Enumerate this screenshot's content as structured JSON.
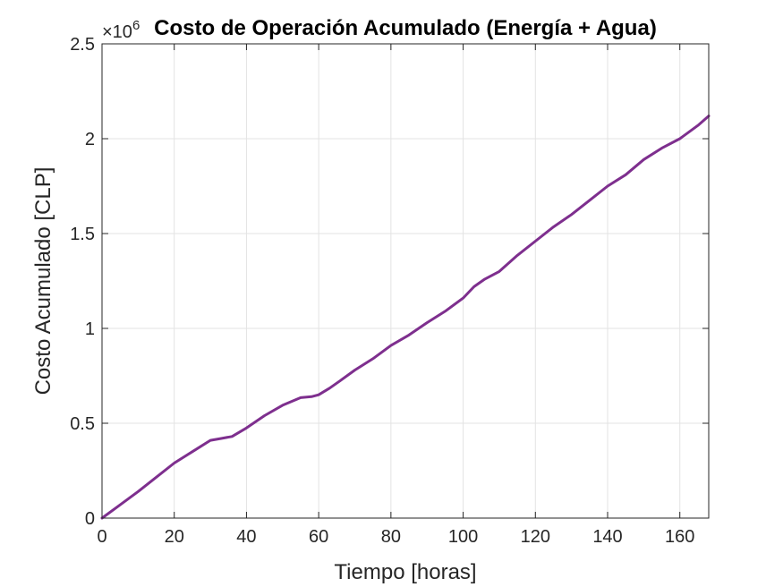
{
  "chart_data": {
    "type": "line",
    "title": "Costo de Operación Acumulado (Energía + Agua)",
    "xlabel": "Tiempo [horas]",
    "ylabel": "Costo Acumulado [CLP]",
    "y_multiplier": {
      "base": "×10",
      "exponent": "6"
    },
    "xlim": [
      0,
      168
    ],
    "ylim": [
      0,
      2500000
    ],
    "x_ticks": [
      0,
      20,
      40,
      60,
      80,
      100,
      120,
      140,
      160
    ],
    "x_tick_labels": [
      "0",
      "20",
      "40",
      "60",
      "80",
      "100",
      "120",
      "140",
      "160"
    ],
    "y_ticks": [
      0,
      500000,
      1000000,
      1500000,
      2000000,
      2500000
    ],
    "y_tick_labels": [
      "0",
      "0.5",
      "1",
      "1.5",
      "2",
      "2.5"
    ],
    "grid": true,
    "series": [
      {
        "color": "#7e2f8e",
        "x": [
          0,
          5,
          10,
          15,
          20,
          25,
          30,
          33,
          36,
          40,
          45,
          50,
          55,
          58,
          60,
          63,
          66,
          70,
          75,
          80,
          85,
          90,
          95,
          100,
          103,
          106,
          110,
          115,
          120,
          125,
          130,
          135,
          140,
          145,
          150,
          155,
          160,
          165,
          168
        ],
        "y": [
          0,
          70000,
          140000,
          215000,
          290000,
          350000,
          410000,
          420000,
          430000,
          475000,
          540000,
          595000,
          635000,
          640000,
          650000,
          685000,
          725000,
          780000,
          840000,
          910000,
          965000,
          1030000,
          1090000,
          1160000,
          1220000,
          1260000,
          1300000,
          1385000,
          1460000,
          1535000,
          1600000,
          1675000,
          1750000,
          1810000,
          1890000,
          1950000,
          2000000,
          2070000,
          2120000
        ]
      }
    ]
  }
}
